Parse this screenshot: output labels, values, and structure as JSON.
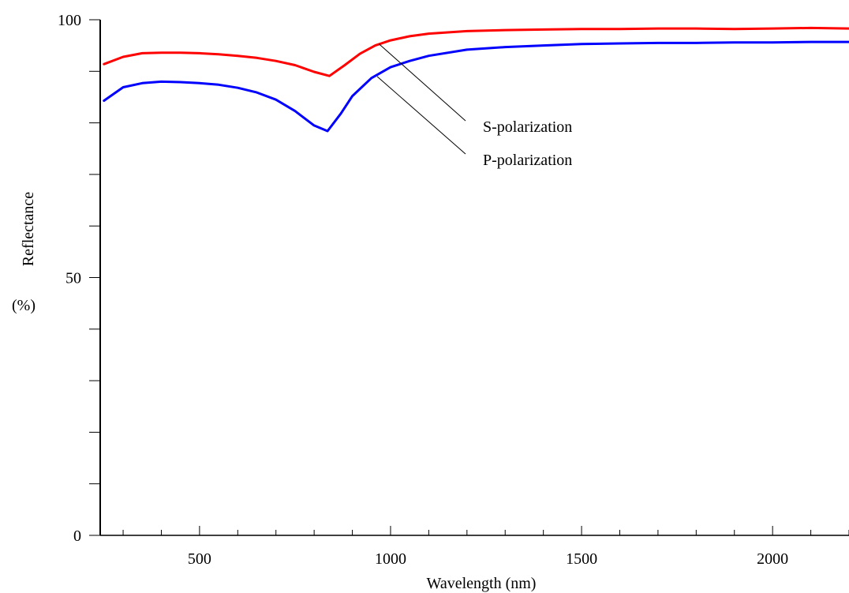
{
  "chart_data": {
    "type": "line",
    "title": "",
    "xlabel": "Wavelength (nm)",
    "ylabel": "Reflectance",
    "yunit": "(%)",
    "xlim": [
      240,
      2200
    ],
    "ylim": [
      0,
      100
    ],
    "x_ticks": [
      500,
      1000,
      1500,
      2000
    ],
    "y_ticks": [
      0,
      50,
      100
    ],
    "x_minor_step": 100,
    "y_minor_step": 10,
    "grid": false,
    "legend": "none",
    "series": [
      {
        "name": "S-polarization",
        "color": "#ff0000",
        "x": [
          250,
          300,
          350,
          400,
          450,
          500,
          550,
          600,
          650,
          700,
          750,
          800,
          840,
          880,
          920,
          960,
          1000,
          1050,
          1100,
          1200,
          1300,
          1400,
          1500,
          1600,
          1700,
          1800,
          1900,
          2000,
          2100,
          2200
        ],
        "y": [
          91.4,
          92.8,
          93.5,
          93.6,
          93.6,
          93.5,
          93.3,
          93.0,
          92.6,
          92.0,
          91.2,
          89.9,
          89.1,
          91.2,
          93.4,
          95.0,
          96.0,
          96.8,
          97.3,
          97.8,
          98.0,
          98.1,
          98.2,
          98.2,
          98.3,
          98.3,
          98.2,
          98.3,
          98.4,
          98.3
        ]
      },
      {
        "name": "P-polarization",
        "color": "#0000ff",
        "x": [
          250,
          300,
          350,
          400,
          450,
          500,
          550,
          600,
          650,
          700,
          750,
          800,
          835,
          870,
          900,
          950,
          1000,
          1050,
          1100,
          1200,
          1300,
          1400,
          1500,
          1600,
          1700,
          1800,
          1900,
          2000,
          2100,
          2200
        ],
        "y": [
          84.3,
          86.9,
          87.7,
          88.0,
          87.9,
          87.7,
          87.4,
          86.8,
          85.9,
          84.5,
          82.3,
          79.5,
          78.4,
          81.8,
          85.2,
          88.7,
          90.8,
          92.0,
          93.0,
          94.2,
          94.7,
          95.0,
          95.3,
          95.4,
          95.5,
          95.5,
          95.6,
          95.6,
          95.7,
          95.7
        ]
      }
    ],
    "annotations": [
      {
        "text": "S-polarization",
        "series": "S-polarization",
        "point_x": 970,
        "point_y": 95.3
      },
      {
        "text": "P-polarization",
        "series": "P-polarization",
        "point_x": 965,
        "point_y": 89.0
      }
    ]
  }
}
